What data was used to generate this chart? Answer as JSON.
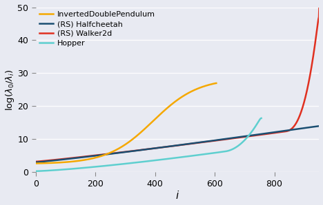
{
  "title": "",
  "xlabel": "$i$",
  "ylabel": "$\\log(\\lambda_0/\\lambda_i)$",
  "background_color": "#e8eaf2",
  "xlim": [
    0,
    950
  ],
  "ylim": [
    0,
    50
  ],
  "xticks": [
    0,
    200,
    400,
    600,
    800
  ],
  "yticks": [
    0,
    10,
    20,
    30,
    40,
    50
  ],
  "curves": {
    "InvertedDoublePendulum": {
      "color": "#f5a800",
      "x_end": 605,
      "y_start": 2.5,
      "y_end": 27.0
    },
    "(RS) Halfcheetah": {
      "color": "#1b4f72",
      "x_end": 950,
      "y_start": 3.0,
      "y_end": 14.0
    },
    "(RS) Walker2d": {
      "color": "#e03020",
      "x_end": 950,
      "y_start": 3.2,
      "y_end": 50.0
    },
    "Hopper": {
      "color": "#5ecfcf",
      "x_end": 756,
      "y_start": 0.3,
      "y_end": 16.5
    }
  }
}
